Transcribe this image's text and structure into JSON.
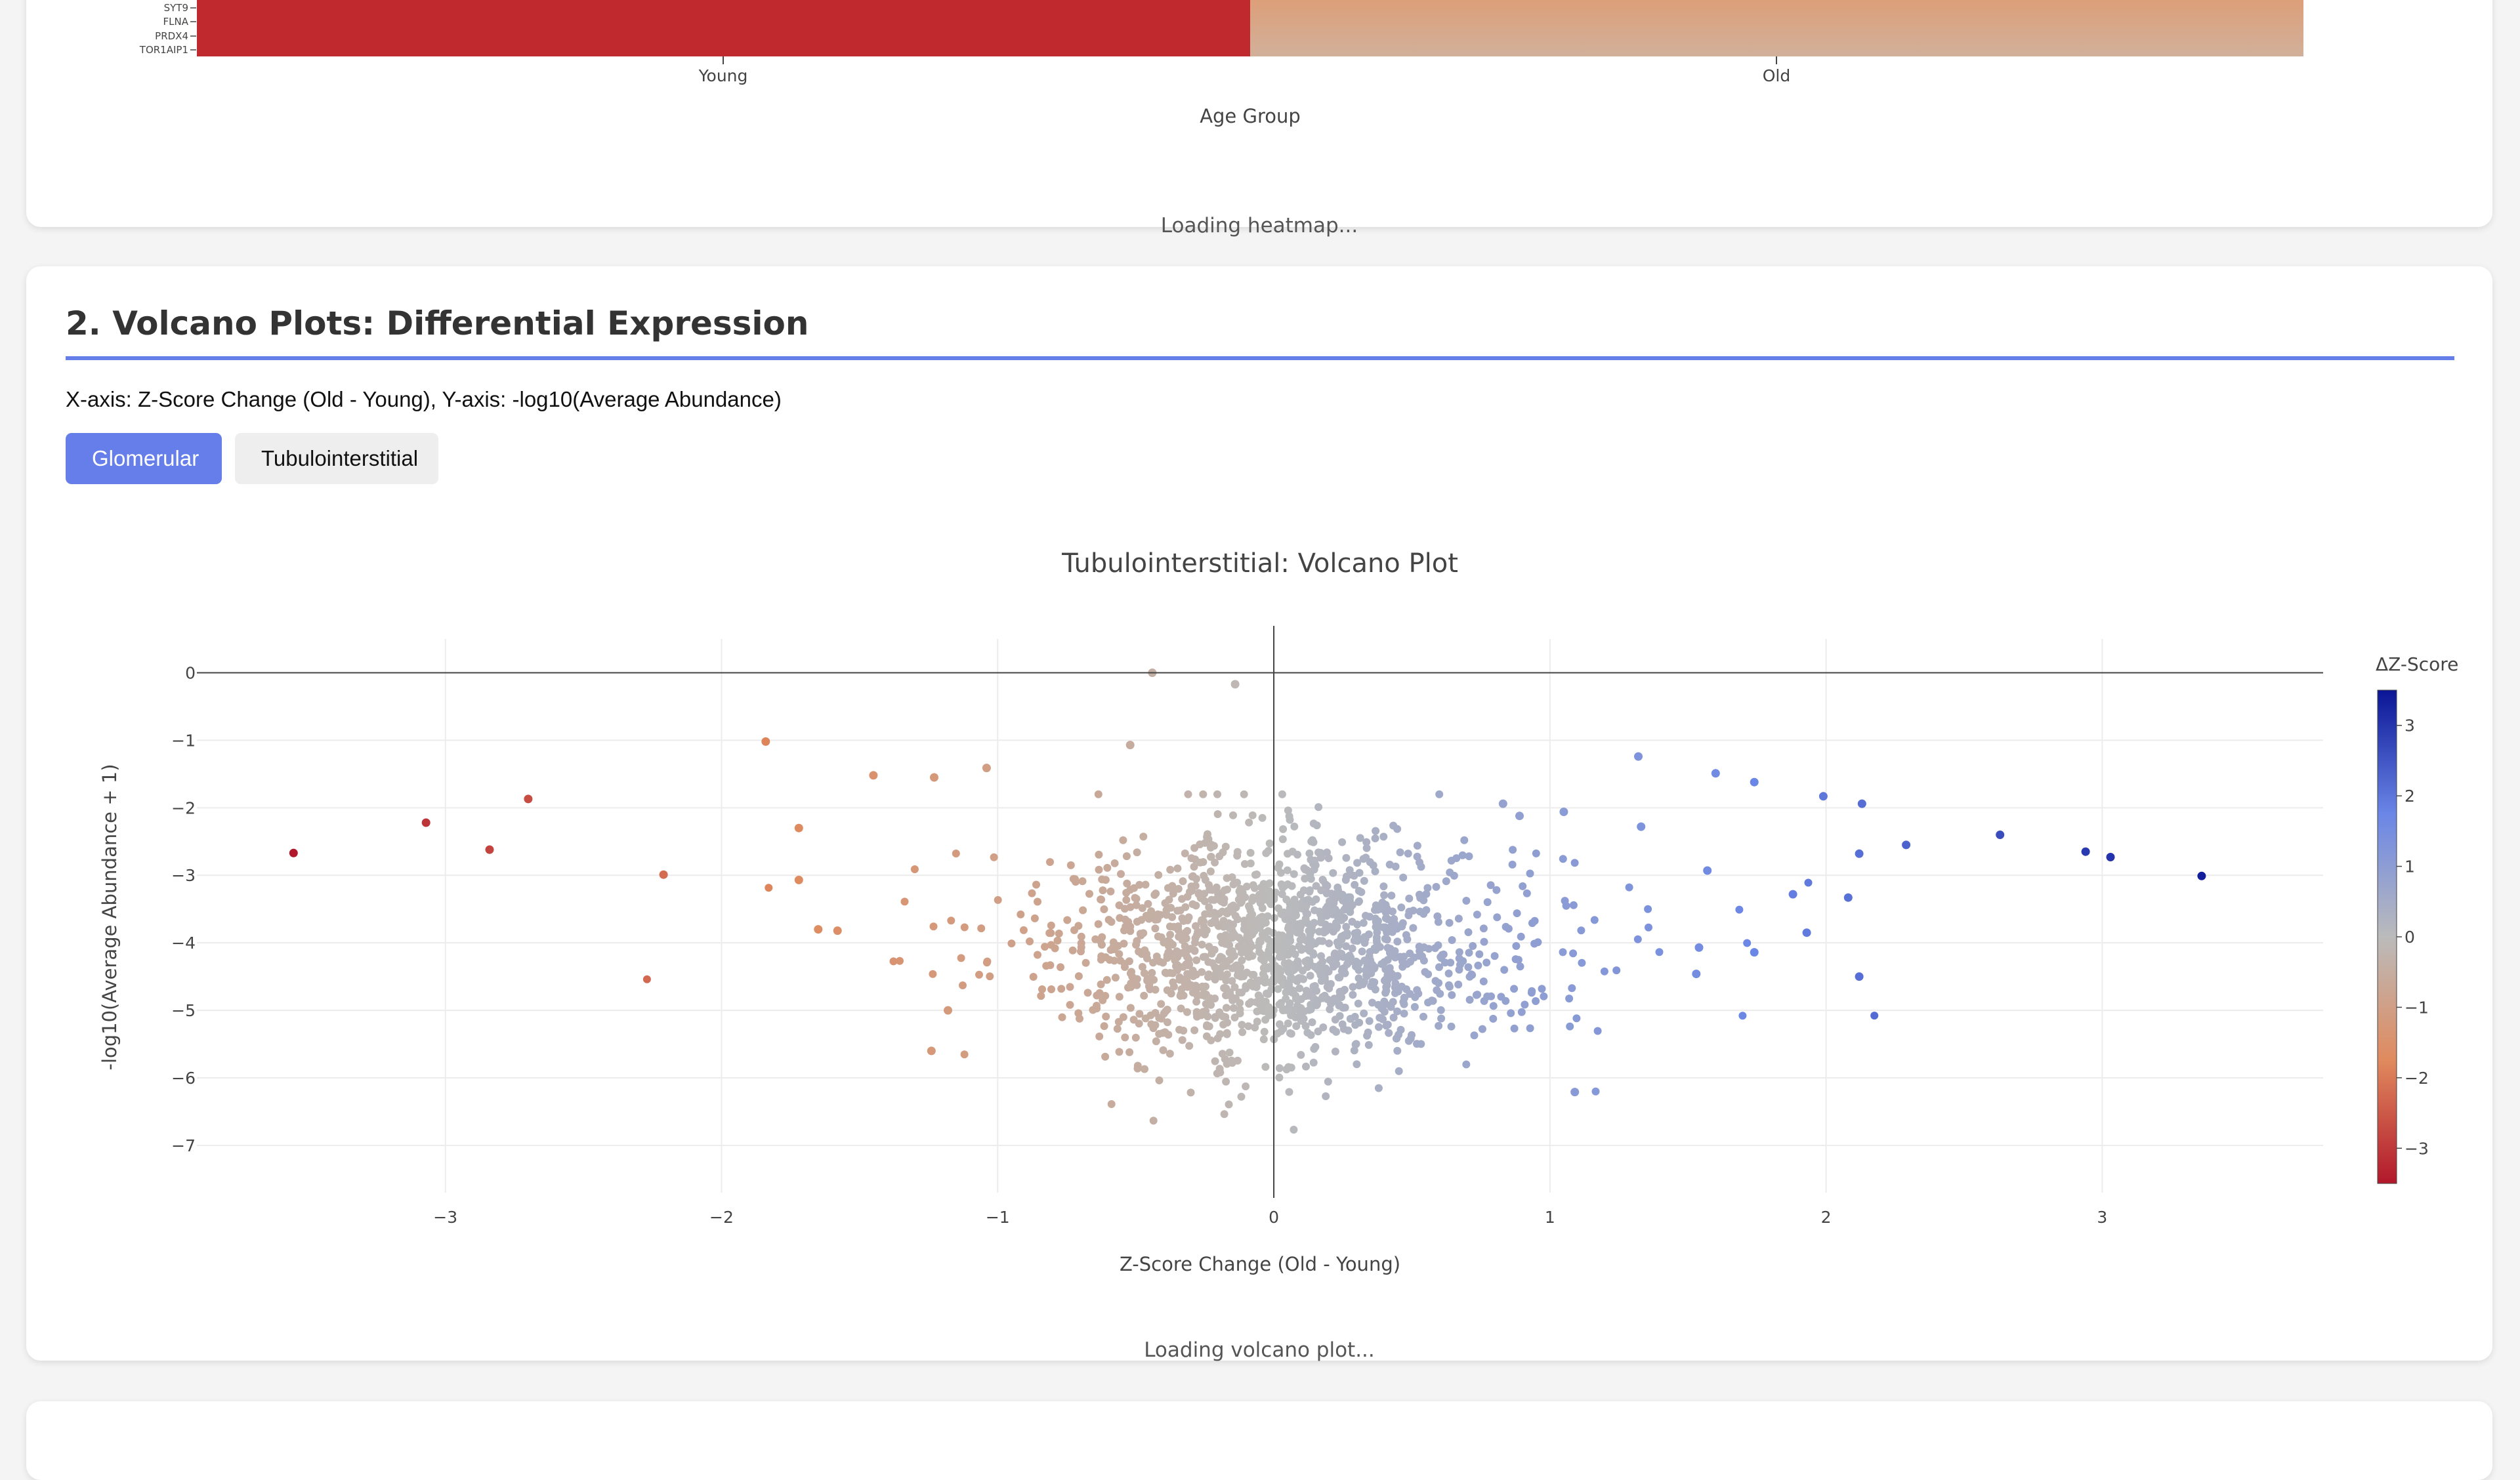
{
  "heatmap": {
    "genes": [
      "SYT9",
      "FLNA",
      "PRDX4",
      "TOR1AIP1"
    ],
    "x_categories": [
      "Young",
      "Old"
    ],
    "xlabel": "Age Group",
    "loading_text": "Loading heatmap...",
    "colors": {
      "young": "#c0292e",
      "old_top": "#e2976a",
      "old_bottom": "#d1b09a"
    }
  },
  "volcano_section": {
    "title": "2. Volcano Plots: Differential Expression",
    "description": "X-axis: Z-Score Change (Old - Young), Y-axis: -log10(Average Abundance)",
    "buttons": [
      {
        "label": "Glomerular",
        "active": true
      },
      {
        "label": "Tubulointerstitial",
        "active": false
      }
    ],
    "loading_text": "Loading volcano plot...",
    "accent_color": "#667eea"
  },
  "chart_data": {
    "type": "scatter",
    "title": "Tubulointerstitial: Volcano Plot",
    "xlabel": "Z-Score Change (Old - Young)",
    "ylabel": "-log10(Average Abundance + 1)",
    "xlim": [
      -3.9,
      3.8
    ],
    "ylim": [
      -7.7,
      0.5
    ],
    "xticks": [
      -3,
      -2,
      -1,
      0,
      1,
      2,
      3
    ],
    "yticks": [
      0,
      -1,
      -2,
      -3,
      -4,
      -5,
      -6,
      -7
    ],
    "grid": true,
    "colorbar": {
      "title": "ΔZ-Score",
      "range": [
        -3.5,
        3.5
      ],
      "ticks": [
        3,
        2,
        1,
        0,
        -1,
        -2,
        -3
      ],
      "colorscale": [
        "#b2182b",
        "#e08a5e",
        "#bbbbbb",
        "#6a86e6",
        "#0a1596"
      ]
    },
    "highlighted_points": [
      {
        "x": -3.55,
        "y": -2.67
      },
      {
        "x": -3.07,
        "y": -2.22
      },
      {
        "x": -2.84,
        "y": -2.62
      },
      {
        "x": -2.7,
        "y": -1.87
      },
      {
        "x": -2.21,
        "y": -2.99
      },
      {
        "x": -1.84,
        "y": -1.02
      },
      {
        "x": -1.72,
        "y": -2.3
      },
      {
        "x": -1.72,
        "y": -3.07
      },
      {
        "x": -1.65,
        "y": -3.8
      },
      {
        "x": -1.58,
        "y": -3.82
      },
      {
        "x": -1.45,
        "y": -1.52
      },
      {
        "x": -1.23,
        "y": -1.55
      },
      {
        "x": -1.04,
        "y": -1.41
      },
      {
        "x": -1.18,
        "y": -5.0
      },
      {
        "x": -1.24,
        "y": -5.6
      },
      {
        "x": -0.52,
        "y": -1.07
      },
      {
        "x": -0.44,
        "y": 0.0
      },
      {
        "x": -0.14,
        "y": -0.17
      },
      {
        "x": 1.32,
        "y": -1.24
      },
      {
        "x": 1.6,
        "y": -1.49
      },
      {
        "x": 1.74,
        "y": -1.62
      },
      {
        "x": 1.99,
        "y": -1.83
      },
      {
        "x": 2.13,
        "y": -1.94
      },
      {
        "x": 2.29,
        "y": -2.55
      },
      {
        "x": 2.63,
        "y": -2.4
      },
      {
        "x": 2.94,
        "y": -2.65
      },
      {
        "x": 3.03,
        "y": -2.73
      },
      {
        "x": 3.36,
        "y": -3.01
      },
      {
        "x": 2.12,
        "y": -2.68
      },
      {
        "x": 2.08,
        "y": -3.33
      },
      {
        "x": 1.88,
        "y": -3.28
      },
      {
        "x": 1.93,
        "y": -3.85
      },
      {
        "x": 1.74,
        "y": -4.14
      },
      {
        "x": 2.12,
        "y": -4.5
      },
      {
        "x": 1.54,
        "y": -4.07
      },
      {
        "x": 1.53,
        "y": -4.46
      },
      {
        "x": 1.09,
        "y": -6.21
      },
      {
        "x": 1.33,
        "y": -2.28
      },
      {
        "x": 1.57,
        "y": -2.93
      },
      {
        "x": 0.83,
        "y": -1.94
      },
      {
        "x": 0.89,
        "y": -2.12
      },
      {
        "x": 1.05,
        "y": -2.06
      }
    ],
    "bulk_cloud": {
      "n_points": 1550,
      "x_mean": 0.0,
      "x_sd": 0.36,
      "y_mean": -4.1,
      "y_sd": 0.82
    }
  }
}
